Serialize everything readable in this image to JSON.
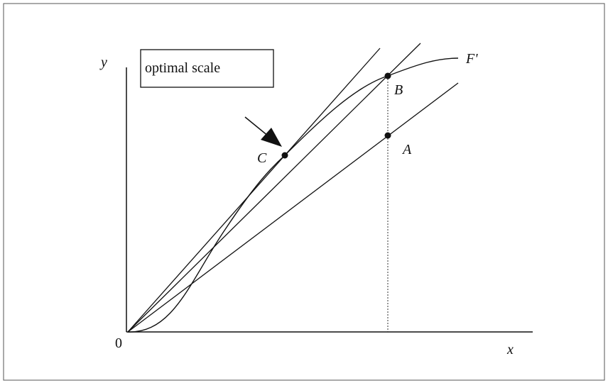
{
  "axes": {
    "y_label": "y",
    "x_label": "x",
    "origin": "0"
  },
  "box": {
    "label": "optimal scale"
  },
  "points": {
    "C": "C",
    "B": "B",
    "A": "A"
  },
  "curve": {
    "label": "F'"
  }
}
